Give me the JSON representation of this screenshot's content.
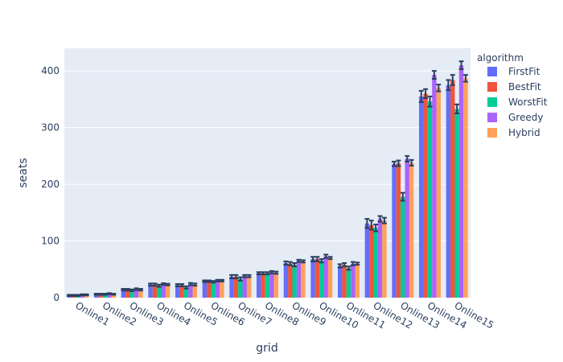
{
  "chart_data": {
    "type": "bar",
    "xlabel": "grid",
    "ylabel": "seats",
    "ylim": [
      0,
      440
    ],
    "yticks": [
      0,
      100,
      200,
      300,
      400
    ],
    "grid": true,
    "legend_title": "algorithm",
    "legend_position": "top-right",
    "categories": [
      "Online1",
      "Online2",
      "Online3",
      "Online4",
      "Online5",
      "Online6",
      "Online7",
      "Online8",
      "Online9",
      "Online10",
      "Online11",
      "Online12",
      "Online13",
      "Online14",
      "Online15"
    ],
    "series": [
      {
        "name": "FirstFit",
        "color": "#636efa",
        "values": [
          4,
          6,
          14,
          23,
          22,
          29,
          37,
          43,
          61,
          68,
          56,
          131,
          236,
          355,
          375
        ],
        "errors": [
          1,
          1,
          1.5,
          2,
          2,
          1.5,
          3,
          2,
          3,
          4,
          3,
          8,
          4,
          10,
          9
        ]
      },
      {
        "name": "BestFit",
        "color": "#ef553b",
        "values": [
          4,
          6,
          14,
          23,
          22,
          29,
          37,
          43,
          60,
          68,
          58,
          128,
          237,
          360,
          384
        ],
        "errors": [
          1,
          1,
          1.5,
          2,
          2,
          1.5,
          3,
          2,
          3,
          4,
          3,
          8,
          5,
          8,
          9
        ]
      },
      {
        "name": "WorstFit",
        "color": "#00cc96",
        "values": [
          4,
          6,
          13,
          21,
          18,
          28,
          33,
          43,
          58,
          65,
          52,
          123,
          178,
          346,
          333
        ],
        "errors": [
          1,
          1,
          1.5,
          2,
          2,
          1.5,
          3,
          2,
          3,
          3,
          3,
          6,
          7,
          9,
          8
        ]
      },
      {
        "name": "Greedy",
        "color": "#ab63fa",
        "values": [
          5,
          7,
          15,
          24,
          24,
          30,
          38,
          45,
          65,
          73,
          60,
          139,
          245,
          393,
          410
        ],
        "errors": [
          1,
          1,
          1.5,
          1.5,
          2,
          1.5,
          2,
          2,
          2,
          3,
          3,
          5,
          5,
          7,
          7
        ]
      },
      {
        "name": "Hybrid",
        "color": "#ffa15a",
        "values": [
          5,
          6,
          14,
          23,
          23,
          30,
          38,
          44,
          64,
          70,
          60,
          136,
          238,
          370,
          387
        ],
        "errors": [
          1,
          1,
          1.5,
          1.5,
          2,
          1.5,
          2,
          2,
          2,
          2,
          2,
          5,
          5,
          6,
          6
        ]
      }
    ]
  }
}
